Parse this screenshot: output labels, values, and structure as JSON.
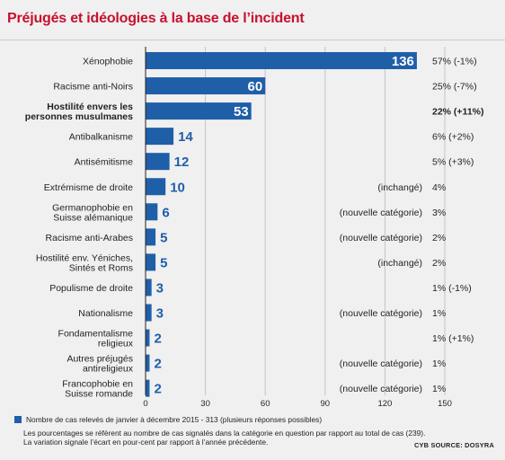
{
  "header": {
    "title": "Préjugés et idéologies à la base de l’incident"
  },
  "chart_data": {
    "type": "bar",
    "orientation": "horizontal",
    "title": "Préjugés et idéologies à la base de l’incident",
    "categories": [
      [
        "Xénophobie"
      ],
      [
        "Racisme anti-Noirs"
      ],
      [
        "Hostilité envers les",
        "personnes musulmanes"
      ],
      [
        "Antibalkanisme"
      ],
      [
        "Antisémitisme"
      ],
      [
        "Extrémisme de droite"
      ],
      [
        "Germanophobie en",
        "Suisse alémanique"
      ],
      [
        "Racisme anti-Arabes"
      ],
      [
        "Hostilité env. Yéniches,",
        "Sintés et Roms"
      ],
      [
        "Populisme de droite"
      ],
      [
        "Nationalisme"
      ],
      [
        "Fondamentalisme",
        "religieux"
      ],
      [
        "Autres préjugés",
        "antireligieux"
      ],
      [
        "Francophobie en",
        "Suisse romande"
      ]
    ],
    "bold_categories": [
      2
    ],
    "values": [
      136,
      60,
      53,
      14,
      12,
      10,
      6,
      5,
      5,
      3,
      3,
      2,
      2,
      2
    ],
    "statuses": [
      "",
      "",
      "",
      "",
      "",
      "(inchangé)",
      "(nouvelle catégorie)",
      "(nouvelle catégorie)",
      "(inchangé)",
      "",
      "(nouvelle catégorie)",
      "",
      "(nouvelle catégorie)",
      "(nouvelle catégorie)"
    ],
    "percentages": [
      "57% (-1%)",
      "25% (-7%)",
      "22% (+11%)",
      "6% (+2%)",
      "5% (+3%)",
      "4%",
      "3%",
      "2%",
      "2%",
      "1% (-1%)",
      "1%",
      "1% (+1%)",
      "1%",
      "1%"
    ],
    "xlim": [
      0,
      150
    ],
    "xticks": [
      0,
      30,
      60,
      90,
      120,
      150
    ],
    "grid": true,
    "bar_color": "#1f5fa8",
    "legend": "Nombre de cas relevés de janvier à décembre 2015 - 313 (plusieurs réponses possibles)"
  },
  "notes": {
    "line1": "Les pourcentages se réfèrent au nombre de cas signalés dans la catégorie en question par rapport au total de cas (239).",
    "line2": "La variation signale l’écart en pour-cent par rapport à l’année précédente."
  },
  "source": "CYB SOURCE: DOSYRA"
}
